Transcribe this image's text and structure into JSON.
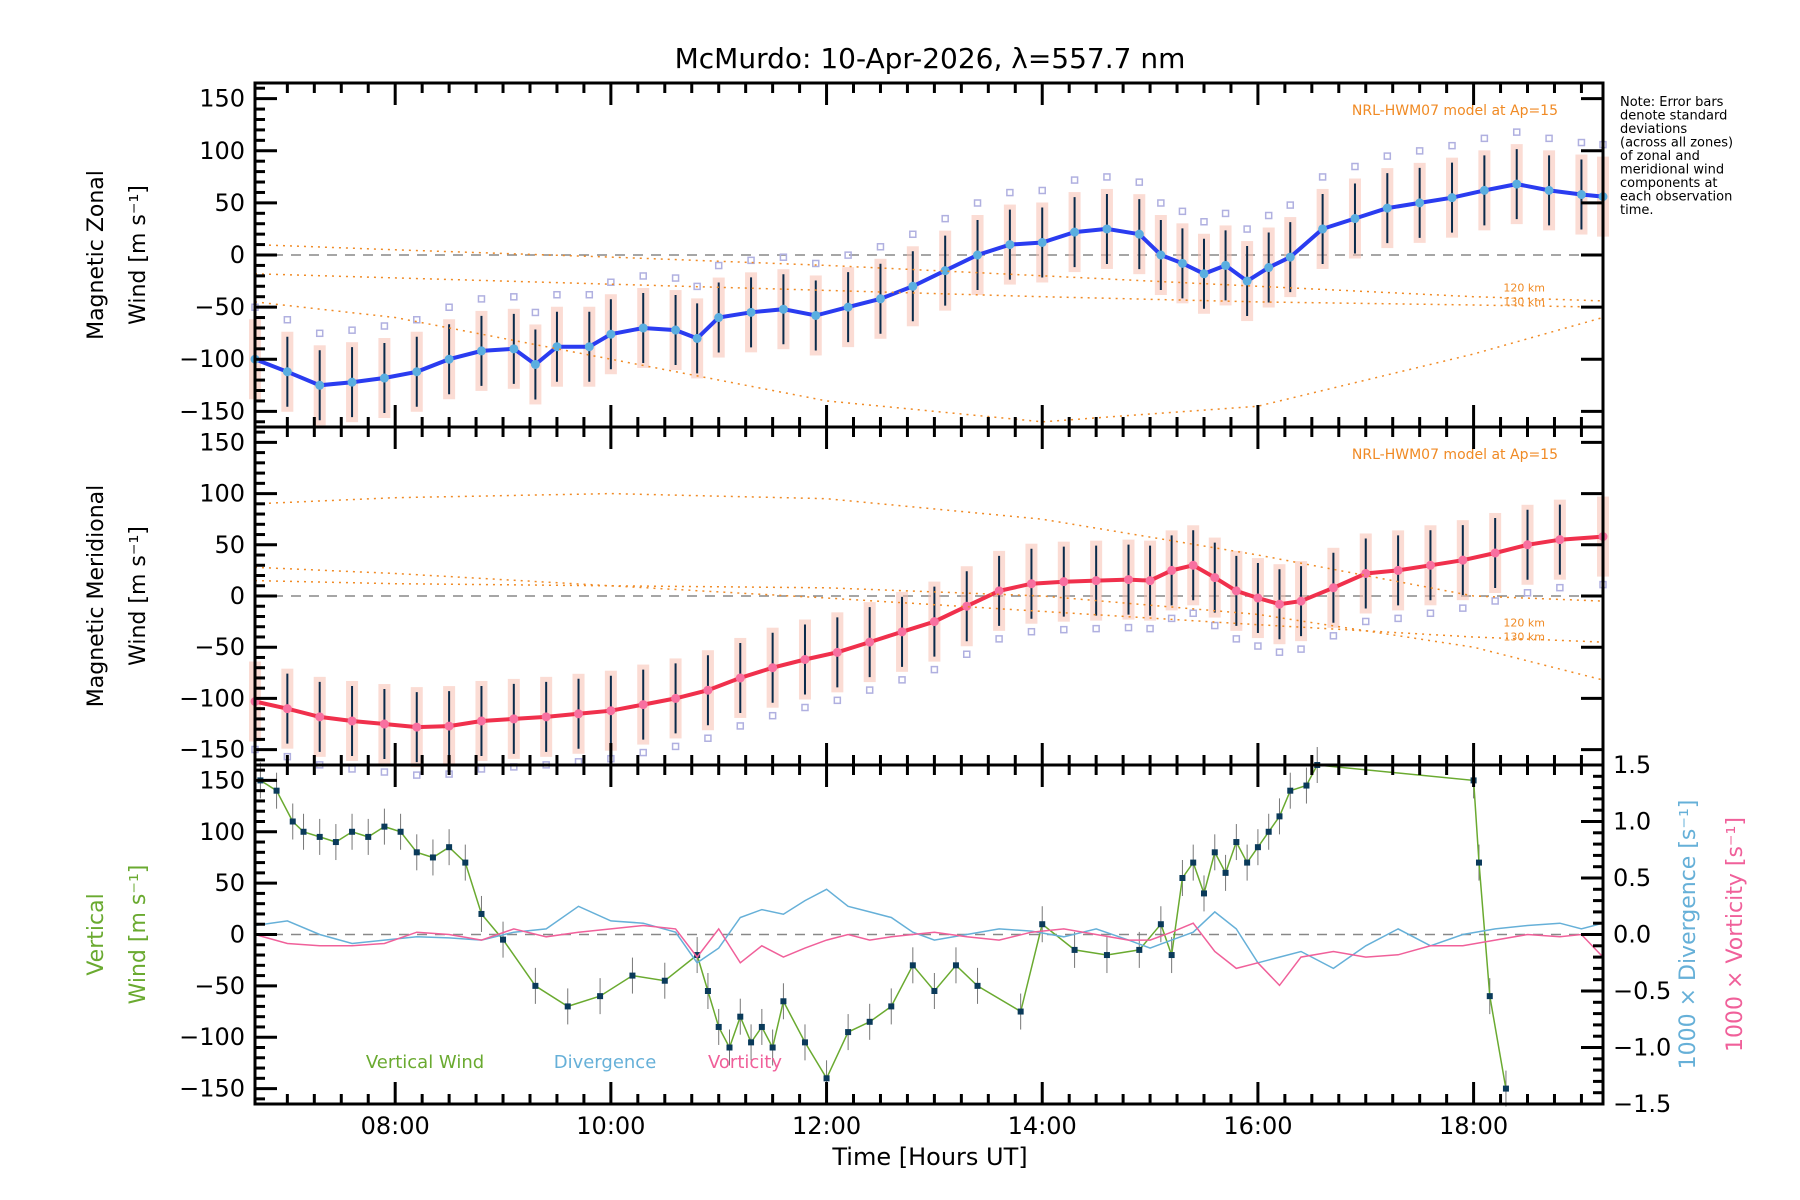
{
  "chart_data": {
    "type": "line",
    "title": "McMurdo: 10-Apr-2026, λ=557.7 nm",
    "xlabel": "Time [Hours UT]",
    "xlim": [
      6.7,
      19.2
    ],
    "x_ticks": [
      8,
      10,
      12,
      14,
      16,
      18
    ],
    "x_tick_labels": [
      "08:00",
      "10:00",
      "12:00",
      "14:00",
      "16:00",
      "18:00"
    ],
    "note": [
      "Note: Error bars",
      "denote standard",
      "deviations",
      "(across all zones)",
      "of zonal and",
      "meridional wind",
      "components at",
      "each observation",
      "time."
    ],
    "colors": {
      "zonal": "#2a3cf0",
      "zonal_marker": "#5aaee0",
      "meridional": "#f0304c",
      "meridional_marker": "#f870a0",
      "model": "#f08a24",
      "zone_scatter": "#b0b0e0",
      "error_bar": "#0a2a4a",
      "vertical": "#6aaa30",
      "vertical_marker": "#0a3a5a",
      "divergence": "#66b0d8",
      "vorticity": "#f0609a",
      "zero_line": "#888888"
    },
    "panels": [
      {
        "name": "zonal",
        "ylabel_line1": "Magnetic Zonal",
        "ylabel_line2": "Wind [m s⁻¹]",
        "ylim": [
          -165,
          165
        ],
        "y_ticks": [
          -150,
          -100,
          -50,
          0,
          50,
          100,
          150
        ],
        "y_tick_labels": [
          "−150",
          "−100",
          "−50",
          "0",
          "50",
          "100",
          "150"
        ],
        "model_label": "NRL-HWM07 model at Ap=15",
        "model_alt_labels": [
          "120 km",
          "130 km"
        ],
        "series": [
          {
            "name": "Zonal wind",
            "x": [
              6.7,
              7.0,
              7.3,
              7.6,
              7.9,
              8.2,
              8.5,
              8.8,
              9.1,
              9.3,
              9.5,
              9.8,
              10.0,
              10.3,
              10.6,
              10.8,
              11.0,
              11.3,
              11.6,
              11.9,
              12.2,
              12.5,
              12.8,
              13.1,
              13.4,
              13.7,
              14.0,
              14.3,
              14.6,
              14.9,
              15.1,
              15.3,
              15.5,
              15.7,
              15.9,
              16.1,
              16.3,
              16.6,
              16.9,
              17.2,
              17.5,
              17.8,
              18.1,
              18.4,
              18.7,
              19.0,
              19.2
            ],
            "y": [
              -100,
              -112,
              -125,
              -122,
              -118,
              -112,
              -100,
              -92,
              -90,
              -105,
              -88,
              -88,
              -76,
              -70,
              -72,
              -80,
              -60,
              -55,
              -52,
              -58,
              -50,
              -42,
              -30,
              -15,
              0,
              10,
              12,
              22,
              25,
              20,
              0,
              -8,
              -18,
              -10,
              -25,
              -12,
              -2,
              25,
              35,
              45,
              50,
              55,
              62,
              68,
              62,
              58,
              56
            ]
          },
          {
            "name": "Model 120 km",
            "style": "dotted",
            "x": [
              6.7,
              8,
              10,
              12,
              14,
              16,
              18,
              19.2
            ],
            "y": [
              10,
              5,
              -2,
              -10,
              -20,
              -30,
              -40,
              -44
            ]
          },
          {
            "name": "Model 130 km",
            "style": "dotted",
            "x": [
              6.7,
              8,
              10,
              12,
              14,
              16,
              18,
              19.2
            ],
            "y": [
              -18,
              -22,
              -28,
              -34,
              -40,
              -45,
              -48,
              -50
            ]
          },
          {
            "name": "Model high",
            "style": "dotted",
            "x": [
              6.7,
              8,
              10,
              12,
              14,
              16,
              18,
              19.2
            ],
            "y": [
              -45,
              -60,
              -100,
              -140,
              -160,
              -145,
              -95,
              -60
            ]
          }
        ]
      },
      {
        "name": "meridional",
        "ylabel_line1": "Magnetic Meridional",
        "ylabel_line2": "Wind [m s⁻¹]",
        "ylim": [
          -165,
          165
        ],
        "y_ticks": [
          -150,
          -100,
          -50,
          0,
          50,
          100,
          150
        ],
        "y_tick_labels": [
          "−150",
          "−100",
          "−50",
          "0",
          "50",
          "100",
          "150"
        ],
        "model_label": "NRL-HWM07 model at Ap=15",
        "model_alt_labels": [
          "120 km",
          "130 km"
        ],
        "series": [
          {
            "name": "Meridional wind",
            "x": [
              6.7,
              7.0,
              7.3,
              7.6,
              7.9,
              8.2,
              8.5,
              8.8,
              9.1,
              9.4,
              9.7,
              10.0,
              10.3,
              10.6,
              10.9,
              11.2,
              11.5,
              11.8,
              12.1,
              12.4,
              12.7,
              13.0,
              13.3,
              13.6,
              13.9,
              14.2,
              14.5,
              14.8,
              15.0,
              15.2,
              15.4,
              15.6,
              15.8,
              16.0,
              16.2,
              16.4,
              16.7,
              17.0,
              17.3,
              17.6,
              17.9,
              18.2,
              18.5,
              18.8,
              19.2
            ],
            "y": [
              -103,
              -110,
              -118,
              -122,
              -125,
              -128,
              -127,
              -122,
              -120,
              -118,
              -115,
              -112,
              -106,
              -100,
              -92,
              -80,
              -70,
              -62,
              -55,
              -45,
              -35,
              -25,
              -10,
              5,
              12,
              14,
              15,
              16,
              15,
              25,
              30,
              18,
              5,
              -2,
              -8,
              -5,
              8,
              22,
              25,
              30,
              35,
              42,
              50,
              55,
              58
            ]
          },
          {
            "name": "Model high",
            "style": "dotted",
            "x": [
              6.7,
              8,
              10,
              12,
              14,
              16,
              18,
              19.2
            ],
            "y": [
              90,
              96,
              100,
              95,
              75,
              40,
              0,
              -5
            ]
          },
          {
            "name": "Model 120 km",
            "style": "dotted",
            "x": [
              6.7,
              8,
              10,
              12,
              14,
              16,
              18,
              19.2
            ],
            "y": [
              28,
              22,
              10,
              -2,
              -15,
              -28,
              -40,
              -45
            ]
          },
          {
            "name": "Model 130 km",
            "style": "dotted",
            "x": [
              6.7,
              8,
              10,
              12,
              14,
              16,
              18,
              19.2
            ],
            "y": [
              15,
              12,
              10,
              8,
              0,
              -18,
              -50,
              -82
            ]
          }
        ]
      },
      {
        "name": "vertical",
        "ylabel_line1": "Vertical",
        "ylabel_line2": "Wind [m s⁻¹]",
        "ylim": [
          -165,
          165
        ],
        "y_ticks": [
          -150,
          -100,
          -50,
          0,
          50,
          100,
          150
        ],
        "y_tick_labels": [
          "−150",
          "−100",
          "−50",
          "0",
          "50",
          "100",
          "150"
        ],
        "right_ylim": [
          -1.5,
          1.5
        ],
        "right_y_ticks": [
          -1.5,
          -1.0,
          -0.5,
          0.0,
          0.5,
          1.0,
          1.5
        ],
        "right_y_tick_labels": [
          "−1.5",
          "−1.0",
          "−0.5",
          "0.0",
          "0.5",
          "1.0",
          "1.5"
        ],
        "right_ylabel_divergence": "1000 × Divergence [s⁻¹]",
        "right_ylabel_vorticity": "1000 × Vorticity [s⁻¹]",
        "legend": [
          "Vertical Wind",
          "Divergence",
          "Vorticity"
        ],
        "series": [
          {
            "name": "Vertical Wind",
            "axis": "left",
            "x": [
              6.75,
              6.9,
              7.05,
              7.15,
              7.3,
              7.45,
              7.6,
              7.75,
              7.9,
              8.05,
              8.2,
              8.35,
              8.5,
              8.65,
              8.8,
              9.0,
              9.3,
              9.6,
              9.9,
              10.2,
              10.5,
              10.8,
              10.9,
              11.0,
              11.1,
              11.2,
              11.3,
              11.4,
              11.5,
              11.6,
              11.8,
              12.0,
              12.2,
              12.4,
              12.6,
              12.8,
              13.0,
              13.2,
              13.4,
              13.8,
              14.0,
              14.3,
              14.6,
              14.9,
              15.1,
              15.2,
              15.3,
              15.4,
              15.5,
              15.6,
              15.7,
              15.8,
              15.9,
              16.0,
              16.1,
              16.2,
              16.3,
              16.45,
              16.55,
              18.0,
              18.05,
              18.15,
              18.3
            ],
            "y": [
              150,
              140,
              110,
              100,
              95,
              90,
              100,
              95,
              105,
              100,
              80,
              75,
              85,
              70,
              20,
              -5,
              -50,
              -70,
              -60,
              -40,
              -45,
              -20,
              -55,
              -90,
              -110,
              -80,
              -105,
              -90,
              -110,
              -65,
              -105,
              -140,
              -95,
              -85,
              -70,
              -30,
              -55,
              -30,
              -50,
              -75,
              10,
              -15,
              -20,
              -15,
              10,
              -20,
              55,
              70,
              40,
              80,
              60,
              90,
              70,
              85,
              100,
              115,
              140,
              145,
              165,
              150,
              70,
              -60,
              -150
            ]
          },
          {
            "name": "Divergence",
            "axis": "right",
            "x": [
              6.7,
              7.0,
              7.3,
              7.6,
              7.9,
              8.2,
              8.5,
              8.8,
              9.1,
              9.4,
              9.7,
              10.0,
              10.3,
              10.6,
              10.8,
              11.0,
              11.2,
              11.4,
              11.6,
              11.8,
              12.0,
              12.2,
              12.4,
              12.6,
              12.8,
              13.0,
              13.3,
              13.6,
              13.9,
              14.2,
              14.5,
              14.8,
              15.0,
              15.2,
              15.4,
              15.6,
              15.8,
              16.0,
              16.2,
              16.4,
              16.7,
              17.0,
              17.3,
              17.6,
              17.9,
              18.2,
              18.5,
              18.8,
              19.0,
              19.2
            ],
            "y": [
              0.08,
              0.12,
              0.0,
              -0.08,
              -0.05,
              -0.02,
              -0.03,
              -0.05,
              0.02,
              0.05,
              0.25,
              0.12,
              0.1,
              0.02,
              -0.25,
              -0.12,
              0.15,
              0.22,
              0.18,
              0.3,
              0.4,
              0.25,
              0.2,
              0.15,
              0.02,
              -0.05,
              0.0,
              0.05,
              0.03,
              -0.02,
              0.05,
              -0.05,
              -0.12,
              -0.05,
              0.02,
              0.2,
              0.05,
              -0.25,
              -0.2,
              -0.15,
              -0.3,
              -0.1,
              0.05,
              -0.1,
              0.0,
              0.05,
              0.08,
              0.1,
              0.05,
              0.1
            ]
          },
          {
            "name": "Vorticity",
            "axis": "right",
            "x": [
              6.7,
              7.0,
              7.3,
              7.6,
              7.9,
              8.2,
              8.5,
              8.8,
              9.1,
              9.4,
              9.7,
              10.0,
              10.3,
              10.6,
              10.8,
              11.0,
              11.2,
              11.4,
              11.6,
              11.8,
              12.0,
              12.2,
              12.4,
              12.6,
              12.8,
              13.0,
              13.3,
              13.6,
              13.9,
              14.2,
              14.5,
              14.8,
              15.0,
              15.2,
              15.4,
              15.6,
              15.8,
              16.0,
              16.2,
              16.4,
              16.7,
              17.0,
              17.3,
              17.6,
              17.9,
              18.2,
              18.5,
              18.8,
              19.0,
              19.2
            ],
            "y": [
              0.0,
              -0.08,
              -0.1,
              -0.1,
              -0.08,
              0.02,
              0.0,
              -0.05,
              0.05,
              -0.02,
              0.02,
              0.05,
              0.08,
              0.05,
              -0.2,
              0.05,
              -0.25,
              -0.1,
              -0.2,
              -0.12,
              -0.05,
              0.0,
              -0.05,
              -0.02,
              0.0,
              0.02,
              -0.02,
              -0.05,
              0.02,
              0.05,
              0.0,
              -0.05,
              -0.05,
              0.02,
              0.1,
              -0.15,
              -0.3,
              -0.25,
              -0.45,
              -0.2,
              -0.15,
              -0.2,
              -0.18,
              -0.1,
              -0.1,
              -0.05,
              0.0,
              -0.02,
              0.0,
              -0.2
            ]
          }
        ]
      }
    ]
  }
}
